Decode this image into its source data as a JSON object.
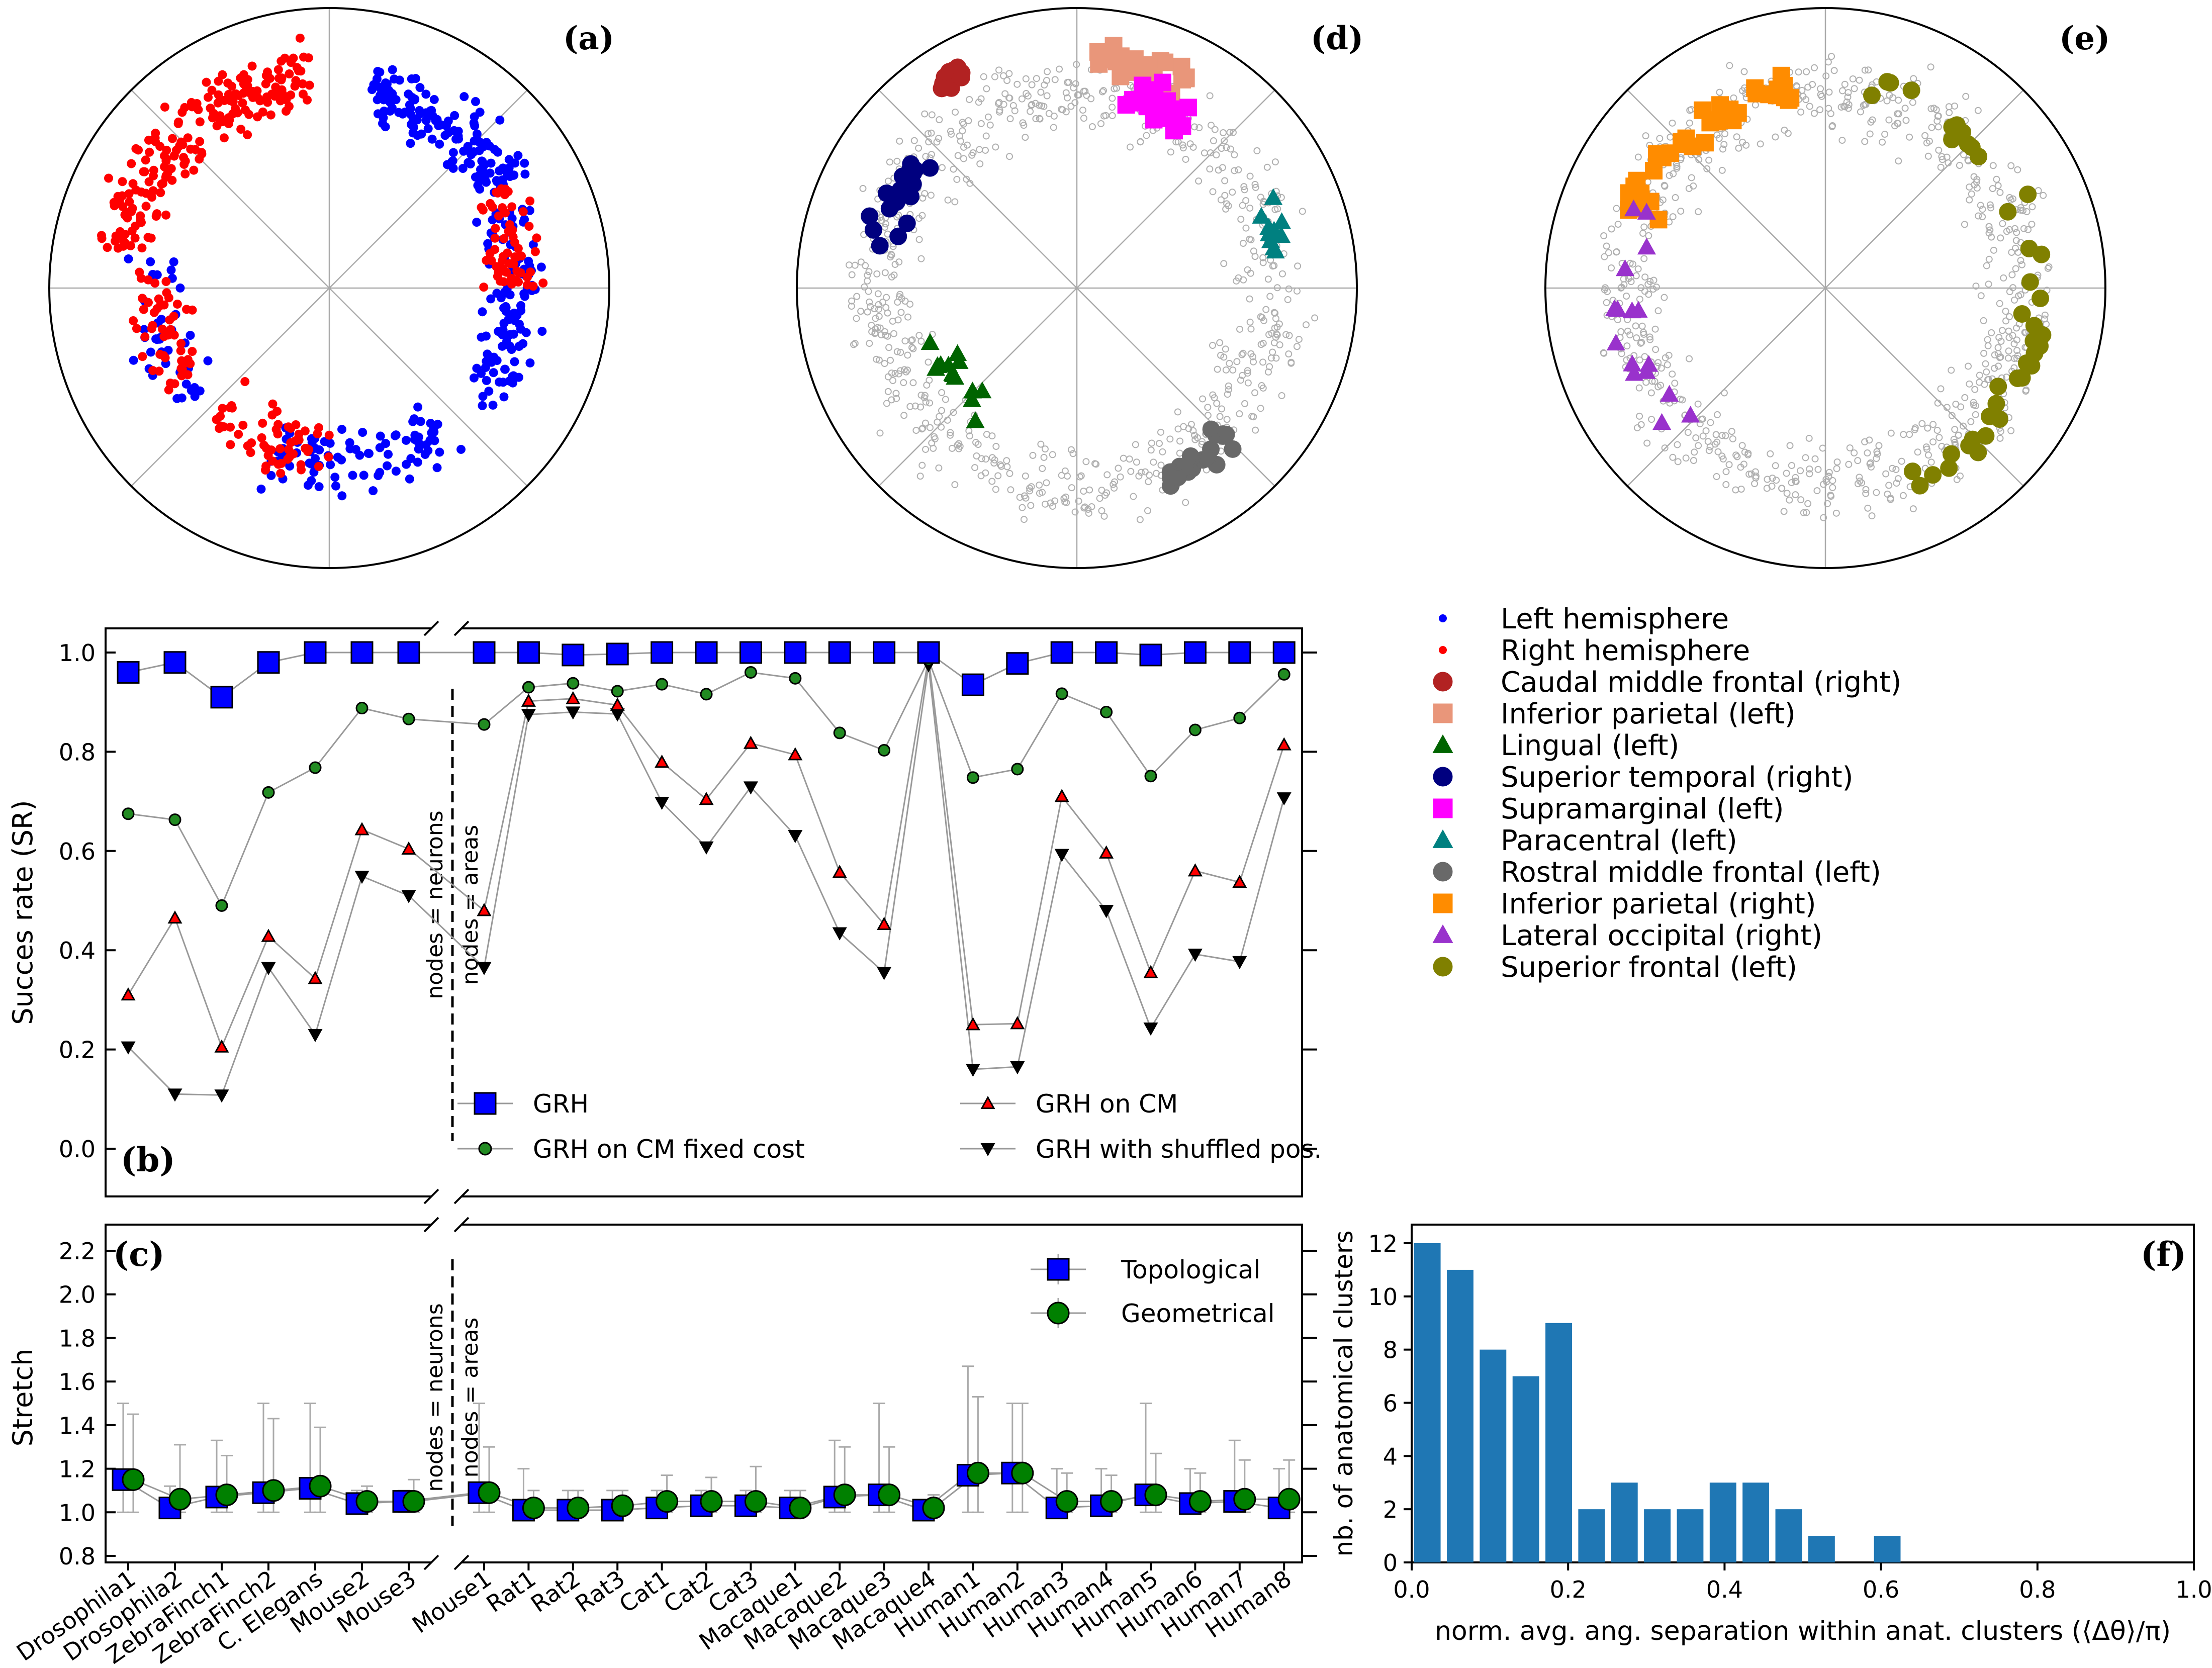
{
  "chart_data": [
    {
      "type": "scatter",
      "panel": "(a)",
      "coordinates": "hyperbolic disk (radius normalized to 1, angle in degrees)",
      "series": [
        {
          "name": "Left hemisphere",
          "color": "#0000ff",
          "clusters": [
            {
              "r": 0.72,
              "a0": 30,
              "a1": 78,
              "n": 150
            },
            {
              "r": 0.68,
              "a0": -40,
              "a1": 25,
              "n": 110
            },
            {
              "r": 0.62,
              "a0": -110,
              "a1": -50,
              "n": 90
            },
            {
              "r": 0.62,
              "a0": 170,
              "a1": 220,
              "n": 40
            }
          ]
        },
        {
          "name": "Right hemisphere",
          "color": "#ff0000",
          "clusters": [
            {
              "r": 0.75,
              "a0": 95,
              "a1": 170,
              "n": 200
            },
            {
              "r": 0.62,
              "a0": 175,
              "a1": 215,
              "n": 50
            },
            {
              "r": 0.58,
              "a0": 225,
              "a1": 270,
              "n": 60
            },
            {
              "r": 0.66,
              "a0": 0,
              "a1": 30,
              "n": 60
            }
          ]
        }
      ]
    },
    {
      "type": "scatter",
      "panel": "(d)",
      "background": {
        "color": "#b0b0b0",
        "n": 700
      },
      "series": [
        {
          "name": "Caudal middle frontal (right)",
          "color": "#b22222",
          "marker": "circle",
          "arc": [
            118,
            125
          ],
          "r": 0.88,
          "n": 12
        },
        {
          "name": "Inferior parietal (left)",
          "color": "#e9967a",
          "marker": "square",
          "arc": [
            62,
            85
          ],
          "r": 0.82,
          "n": 25
        },
        {
          "name": "Lingual (left)",
          "color": "#006400",
          "marker": "triangle",
          "arc": [
            200,
            235
          ],
          "r": 0.55,
          "n": 14
        },
        {
          "name": "Superior temporal (right)",
          "color": "#00007f",
          "marker": "circle",
          "arc": [
            140,
            168
          ],
          "r": 0.72,
          "n": 20
        },
        {
          "name": "Supramarginal (left)",
          "color": "#ff00ff",
          "marker": "square",
          "arc": [
            55,
            75
          ],
          "r": 0.72,
          "n": 18
        },
        {
          "name": "Paracentral (left)",
          "color": "#008080",
          "marker": "triangle",
          "arc": [
            10,
            25
          ],
          "r": 0.72,
          "n": 10
        },
        {
          "name": "Rostral middle frontal (left)",
          "color": "#696969",
          "marker": "circle",
          "arc": [
            295,
            318
          ],
          "r": 0.75,
          "n": 20
        }
      ]
    },
    {
      "type": "scatter",
      "panel": "(e)",
      "background": {
        "color": "#b0b0b0",
        "n": 700
      },
      "series": [
        {
          "name": "Inferior parietal (right)",
          "color": "#ff8c00",
          "marker": "square",
          "arc": [
            100,
            160
          ],
          "r": 0.72,
          "n": 40
        },
        {
          "name": "Lateral occipital (right)",
          "color": "#9932cc",
          "marker": "triangle",
          "arc": [
            150,
            225
          ],
          "r": 0.7,
          "n": 16
        },
        {
          "name": "Superior frontal (left)",
          "color": "#808000",
          "marker": "circle",
          "arc": [
            -65,
            80
          ],
          "r": 0.75,
          "n": 40
        }
      ]
    },
    {
      "type": "line",
      "panel": "(b)",
      "ylabel": "Succes rate (SR)",
      "ylim": [
        -0.05,
        1.05
      ],
      "yticks": [
        "0.0",
        "0.2",
        "0.4",
        "0.6",
        "0.8",
        "1.0"
      ],
      "categories": [
        "Drosophila1",
        "Drosophila2",
        "ZebraFinch1",
        "ZebraFinch2",
        "C. Elegans",
        "Mouse2",
        "Mouse3",
        "Mouse1",
        "Rat1",
        "Rat2",
        "Rat3",
        "Cat1",
        "Cat2",
        "Cat3",
        "Macaque1",
        "Macaque2",
        "Macaque3",
        "Macaque4",
        "Human1",
        "Human2",
        "Human3",
        "Human4",
        "Human5",
        "Human6",
        "Human7",
        "Human8"
      ],
      "divider_labels": [
        "nodes = neurons",
        "nodes = areas"
      ],
      "series": [
        {
          "name": "GRH",
          "color": "#0000ff",
          "marker": "square",
          "values": [
            0.96,
            0.98,
            0.91,
            0.98,
            1.0,
            1.0,
            1.0,
            1.0,
            1.0,
            0.995,
            0.997,
            1.0,
            1.0,
            1.0,
            1.0,
            1.0,
            1.0,
            1.0,
            0.935,
            0.978,
            1.0,
            1.0,
            0.995,
            1.0,
            1.0,
            1.0
          ]
        },
        {
          "name": "GRH on CM fixed cost",
          "color": "#228b22",
          "marker": "circle",
          "values": [
            0.675,
            0.663,
            0.49,
            0.718,
            0.768,
            0.888,
            0.866,
            0.855,
            0.93,
            0.938,
            0.922,
            0.936,
            0.916,
            0.96,
            0.948,
            0.838,
            0.803,
            0.985,
            0.748,
            0.765,
            0.917,
            0.88,
            0.751,
            0.844,
            0.868,
            0.956
          ]
        },
        {
          "name": "GRH on CM",
          "color": "#ff0000",
          "marker": "triangle-up",
          "values": [
            0.31,
            0.465,
            0.205,
            0.428,
            0.343,
            0.643,
            0.604,
            0.48,
            0.902,
            0.907,
            0.894,
            0.779,
            0.704,
            0.817,
            0.794,
            0.557,
            0.452,
            0.99,
            0.25,
            0.252,
            0.71,
            0.596,
            0.355,
            0.56,
            0.537,
            0.814
          ]
        },
        {
          "name": "GRH with shuffled pos.",
          "color": "#000000",
          "marker": "triangle-down",
          "values": [
            0.205,
            0.11,
            0.108,
            0.365,
            0.23,
            0.549,
            0.51,
            0.365,
            0.875,
            0.88,
            0.876,
            0.698,
            0.608,
            0.729,
            0.631,
            0.435,
            0.355,
            0.975,
            0.16,
            0.165,
            0.593,
            0.48,
            0.243,
            0.392,
            0.377,
            0.707
          ]
        }
      ]
    },
    {
      "type": "line",
      "panel": "(c)",
      "ylabel": "Stretch",
      "ylim": [
        0.8,
        2.3
      ],
      "yticks": [
        "0.8",
        "1.0",
        "1.2",
        "1.4",
        "1.6",
        "1.8",
        "2.0",
        "2.2"
      ],
      "series": [
        {
          "name": "Topological",
          "color": "#0000ff",
          "marker": "square",
          "values": [
            1.15,
            1.02,
            1.07,
            1.09,
            1.11,
            1.04,
            1.05,
            1.09,
            1.01,
            1.01,
            1.01,
            1.02,
            1.03,
            1.03,
            1.02,
            1.07,
            1.08,
            1.01,
            1.17,
            1.18,
            1.02,
            1.03,
            1.08,
            1.04,
            1.05,
            1.02
          ],
          "err_hi": [
            1.5,
            1.12,
            1.33,
            1.5,
            1.5,
            1.1,
            1.1,
            1.5,
            1.2,
            1.1,
            1.1,
            1.1,
            1.1,
            1.1,
            1.1,
            1.33,
            1.5,
            1.05,
            1.67,
            1.5,
            1.2,
            1.2,
            1.5,
            1.2,
            1.33,
            1.2
          ]
        },
        {
          "name": "Geometrical",
          "color": "#008000",
          "marker": "circle",
          "values": [
            1.15,
            1.06,
            1.08,
            1.1,
            1.12,
            1.05,
            1.05,
            1.09,
            1.02,
            1.02,
            1.03,
            1.05,
            1.05,
            1.05,
            1.02,
            1.08,
            1.08,
            1.02,
            1.18,
            1.18,
            1.05,
            1.05,
            1.08,
            1.05,
            1.06,
            1.06
          ],
          "err_hi": [
            1.45,
            1.31,
            1.26,
            1.43,
            1.39,
            1.12,
            1.15,
            1.3,
            1.1,
            1.1,
            1.1,
            1.17,
            1.16,
            1.21,
            1.1,
            1.3,
            1.3,
            1.08,
            1.53,
            1.5,
            1.18,
            1.17,
            1.27,
            1.18,
            1.24,
            1.24
          ]
        }
      ]
    },
    {
      "type": "bar",
      "panel": "(f)",
      "xlabel": "norm. avg. ang. separation within anat. clusters (⟨Δθ⟩/π)",
      "ylabel": "nb. of anatomical clusters",
      "xlim": [
        0.0,
        1.0
      ],
      "ylim": [
        0,
        12.5
      ],
      "xticks": [
        "0.0",
        "0.2",
        "0.4",
        "0.6",
        "0.8",
        "1.0"
      ],
      "yticks": [
        "0",
        "2",
        "4",
        "6",
        "8",
        "10",
        "12"
      ],
      "bin_centers": [
        0.02,
        0.062,
        0.104,
        0.146,
        0.188,
        0.23,
        0.272,
        0.314,
        0.356,
        0.398,
        0.44,
        0.482,
        0.524,
        0.566,
        0.608
      ],
      "values": [
        12,
        11,
        8,
        7,
        9,
        2,
        3,
        2,
        2,
        3,
        3,
        2,
        1,
        0,
        1
      ],
      "color": "#1f77b4"
    }
  ],
  "panel_labels": {
    "a": "(a)",
    "d": "(d)",
    "e": "(e)",
    "b": "(b)",
    "c": "(c)",
    "f": "(f)"
  },
  "legend_main": [
    {
      "label": "Left hemisphere",
      "color": "#0000ff",
      "marker": "dot"
    },
    {
      "label": "Right hemisphere",
      "color": "#ff0000",
      "marker": "dot"
    },
    {
      "label": "Caudal middle frontal (right)",
      "color": "#b22222",
      "marker": "circle"
    },
    {
      "label": "Inferior parietal (left)",
      "color": "#e9967a",
      "marker": "square"
    },
    {
      "label": "Lingual (left)",
      "color": "#006400",
      "marker": "triangle"
    },
    {
      "label": "Superior temporal (right)",
      "color": "#00007f",
      "marker": "circle"
    },
    {
      "label": "Supramarginal (left)",
      "color": "#ff00ff",
      "marker": "square"
    },
    {
      "label": "Paracentral (left)",
      "color": "#008080",
      "marker": "triangle"
    },
    {
      "label": "Rostral middle frontal (left)",
      "color": "#696969",
      "marker": "circle"
    },
    {
      "label": "Inferior parietal (right)",
      "color": "#ff8c00",
      "marker": "square"
    },
    {
      "label": "Lateral occipital (right)",
      "color": "#9932cc",
      "marker": "triangle"
    },
    {
      "label": "Superior frontal (left)",
      "color": "#808000",
      "marker": "circle"
    }
  ],
  "legend_b": [
    {
      "label": "GRH",
      "color": "#0000ff",
      "marker": "square"
    },
    {
      "label": "GRH on CM",
      "color": "#ff0000",
      "marker": "triangle-up"
    },
    {
      "label": "GRH on CM fixed cost",
      "color": "#228b22",
      "marker": "circle"
    },
    {
      "label": "GRH with shuffled pos.",
      "color": "#000000",
      "marker": "triangle-down"
    }
  ],
  "legend_c": [
    {
      "label": "Topological",
      "color": "#0000ff",
      "marker": "square"
    },
    {
      "label": "Geometrical",
      "color": "#008000",
      "marker": "circle"
    }
  ]
}
